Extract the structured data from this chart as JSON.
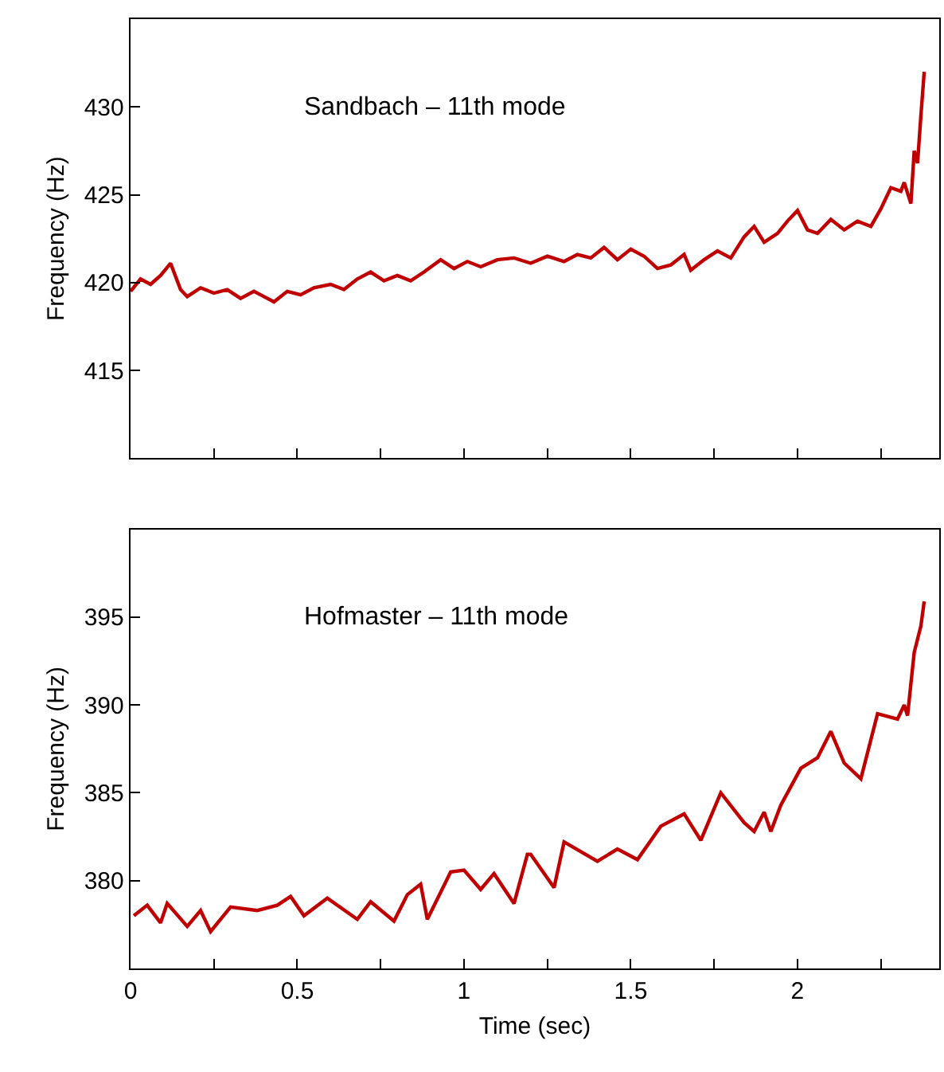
{
  "chart_data": [
    {
      "type": "line",
      "ylabel": "Frequency (Hz)",
      "annotations": [
        "Sandbach – 11th mode"
      ],
      "tick_labels": "y",
      "marker": "none",
      "line_style": "solid",
      "xlim": [
        0,
        2.425
      ],
      "xticks": [
        0,
        {
          "value": 0.25,
          "label": null
        },
        {
          "value": 0.5,
          "label": null
        },
        {
          "value": 0.75,
          "label": null
        },
        {
          "value": 1,
          "label": null
        },
        {
          "value": 1.25,
          "label": null
        },
        {
          "value": 1.5,
          "label": null
        },
        {
          "value": 1.75,
          "label": null
        },
        {
          "value": 2,
          "label": null
        },
        {
          "value": 2.25,
          "label": null
        }
      ],
      "ylim": [
        410,
        435
      ],
      "yticks": [
        415,
        420,
        425,
        430
      ],
      "series": [
        {
          "color": "#c00000",
          "x": [
            0,
            0.03,
            0.06,
            0.09,
            0.12,
            0.15,
            0.17,
            0.21,
            0.25,
            0.29,
            0.33,
            0.37,
            0.4,
            0.43,
            0.47,
            0.51,
            0.55,
            0.6,
            0.64,
            0.68,
            0.72,
            0.76,
            0.8,
            0.84,
            0.88,
            0.93,
            0.97,
            1.01,
            1.05,
            1.1,
            1.15,
            1.2,
            1.25,
            1.3,
            1.34,
            1.38,
            1.42,
            1.46,
            1.5,
            1.54,
            1.58,
            1.62,
            1.66,
            1.68,
            1.72,
            1.76,
            1.8,
            1.84,
            1.87,
            1.9,
            1.94,
            1.97,
            2.0,
            2.03,
            2.06,
            2.1,
            2.14,
            2.18,
            2.22,
            2.25,
            2.28,
            2.31,
            2.32,
            2.34,
            2.35,
            2.36,
            2.37,
            2.38
          ],
          "values": [
            419.5,
            420.2,
            419.9,
            420.4,
            421.1,
            419.6,
            419.2,
            419.7,
            419.4,
            419.6,
            419.1,
            419.5,
            419.2,
            418.9,
            419.5,
            419.3,
            419.7,
            419.9,
            419.6,
            420.2,
            420.6,
            420.1,
            420.4,
            420.1,
            420.6,
            421.3,
            420.8,
            421.2,
            420.9,
            421.3,
            421.4,
            421.1,
            421.5,
            421.2,
            421.6,
            421.4,
            422.0,
            421.3,
            421.9,
            421.5,
            420.8,
            421.0,
            421.6,
            420.7,
            421.3,
            421.8,
            421.4,
            422.6,
            423.2,
            422.3,
            422.8,
            423.5,
            424.1,
            423.0,
            422.8,
            423.6,
            423.0,
            423.5,
            423.2,
            424.2,
            425.4,
            425.2,
            425.7,
            424.5,
            427.5,
            426.8,
            429.5,
            432.0
          ]
        }
      ]
    },
    {
      "type": "line",
      "xlabel": "Time (sec)",
      "ylabel": "Frequency (Hz)",
      "annotations": [
        "Hofmaster – 11th mode"
      ],
      "marker": "none",
      "line_style": "solid",
      "xlim": [
        0,
        2.425
      ],
      "xticks": [
        0,
        {
          "value": 0.25,
          "label": null
        },
        0.5,
        {
          "value": 0.75,
          "label": null
        },
        1,
        {
          "value": 1.25,
          "label": null
        },
        1.5,
        {
          "value": 1.75,
          "label": null
        },
        2,
        {
          "value": 2.25,
          "label": null
        }
      ],
      "ylim": [
        375,
        400
      ],
      "yticks": [
        380,
        385,
        390,
        395
      ],
      "series": [
        {
          "color": "#c00000",
          "x": [
            0.01,
            0.05,
            0.09,
            0.11,
            0.17,
            0.21,
            0.24,
            0.3,
            0.38,
            0.44,
            0.48,
            0.52,
            0.59,
            0.68,
            0.72,
            0.79,
            0.83,
            0.87,
            0.89,
            0.96,
            1.0,
            1.05,
            1.09,
            1.15,
            1.19,
            1.2,
            1.27,
            1.3,
            1.4,
            1.46,
            1.52,
            1.59,
            1.66,
            1.71,
            1.77,
            1.84,
            1.87,
            1.9,
            1.92,
            1.95,
            2.01,
            2.06,
            2.1,
            2.14,
            2.19,
            2.24,
            2.3,
            2.32,
            2.33,
            2.35,
            2.37,
            2.38
          ],
          "values": [
            378.0,
            378.6,
            377.6,
            378.7,
            377.4,
            378.3,
            377.1,
            378.5,
            378.3,
            378.6,
            379.1,
            378.0,
            379.0,
            377.8,
            378.8,
            377.7,
            379.2,
            379.8,
            377.8,
            380.5,
            380.6,
            379.5,
            380.4,
            378.7,
            381.5,
            381.5,
            379.6,
            382.2,
            381.1,
            381.8,
            381.2,
            383.1,
            383.8,
            382.3,
            385.0,
            383.3,
            382.8,
            383.9,
            382.8,
            384.3,
            386.4,
            387.0,
            388.5,
            386.7,
            385.8,
            389.5,
            389.2,
            390.0,
            389.4,
            393.0,
            394.5,
            395.9
          ]
        }
      ]
    }
  ]
}
